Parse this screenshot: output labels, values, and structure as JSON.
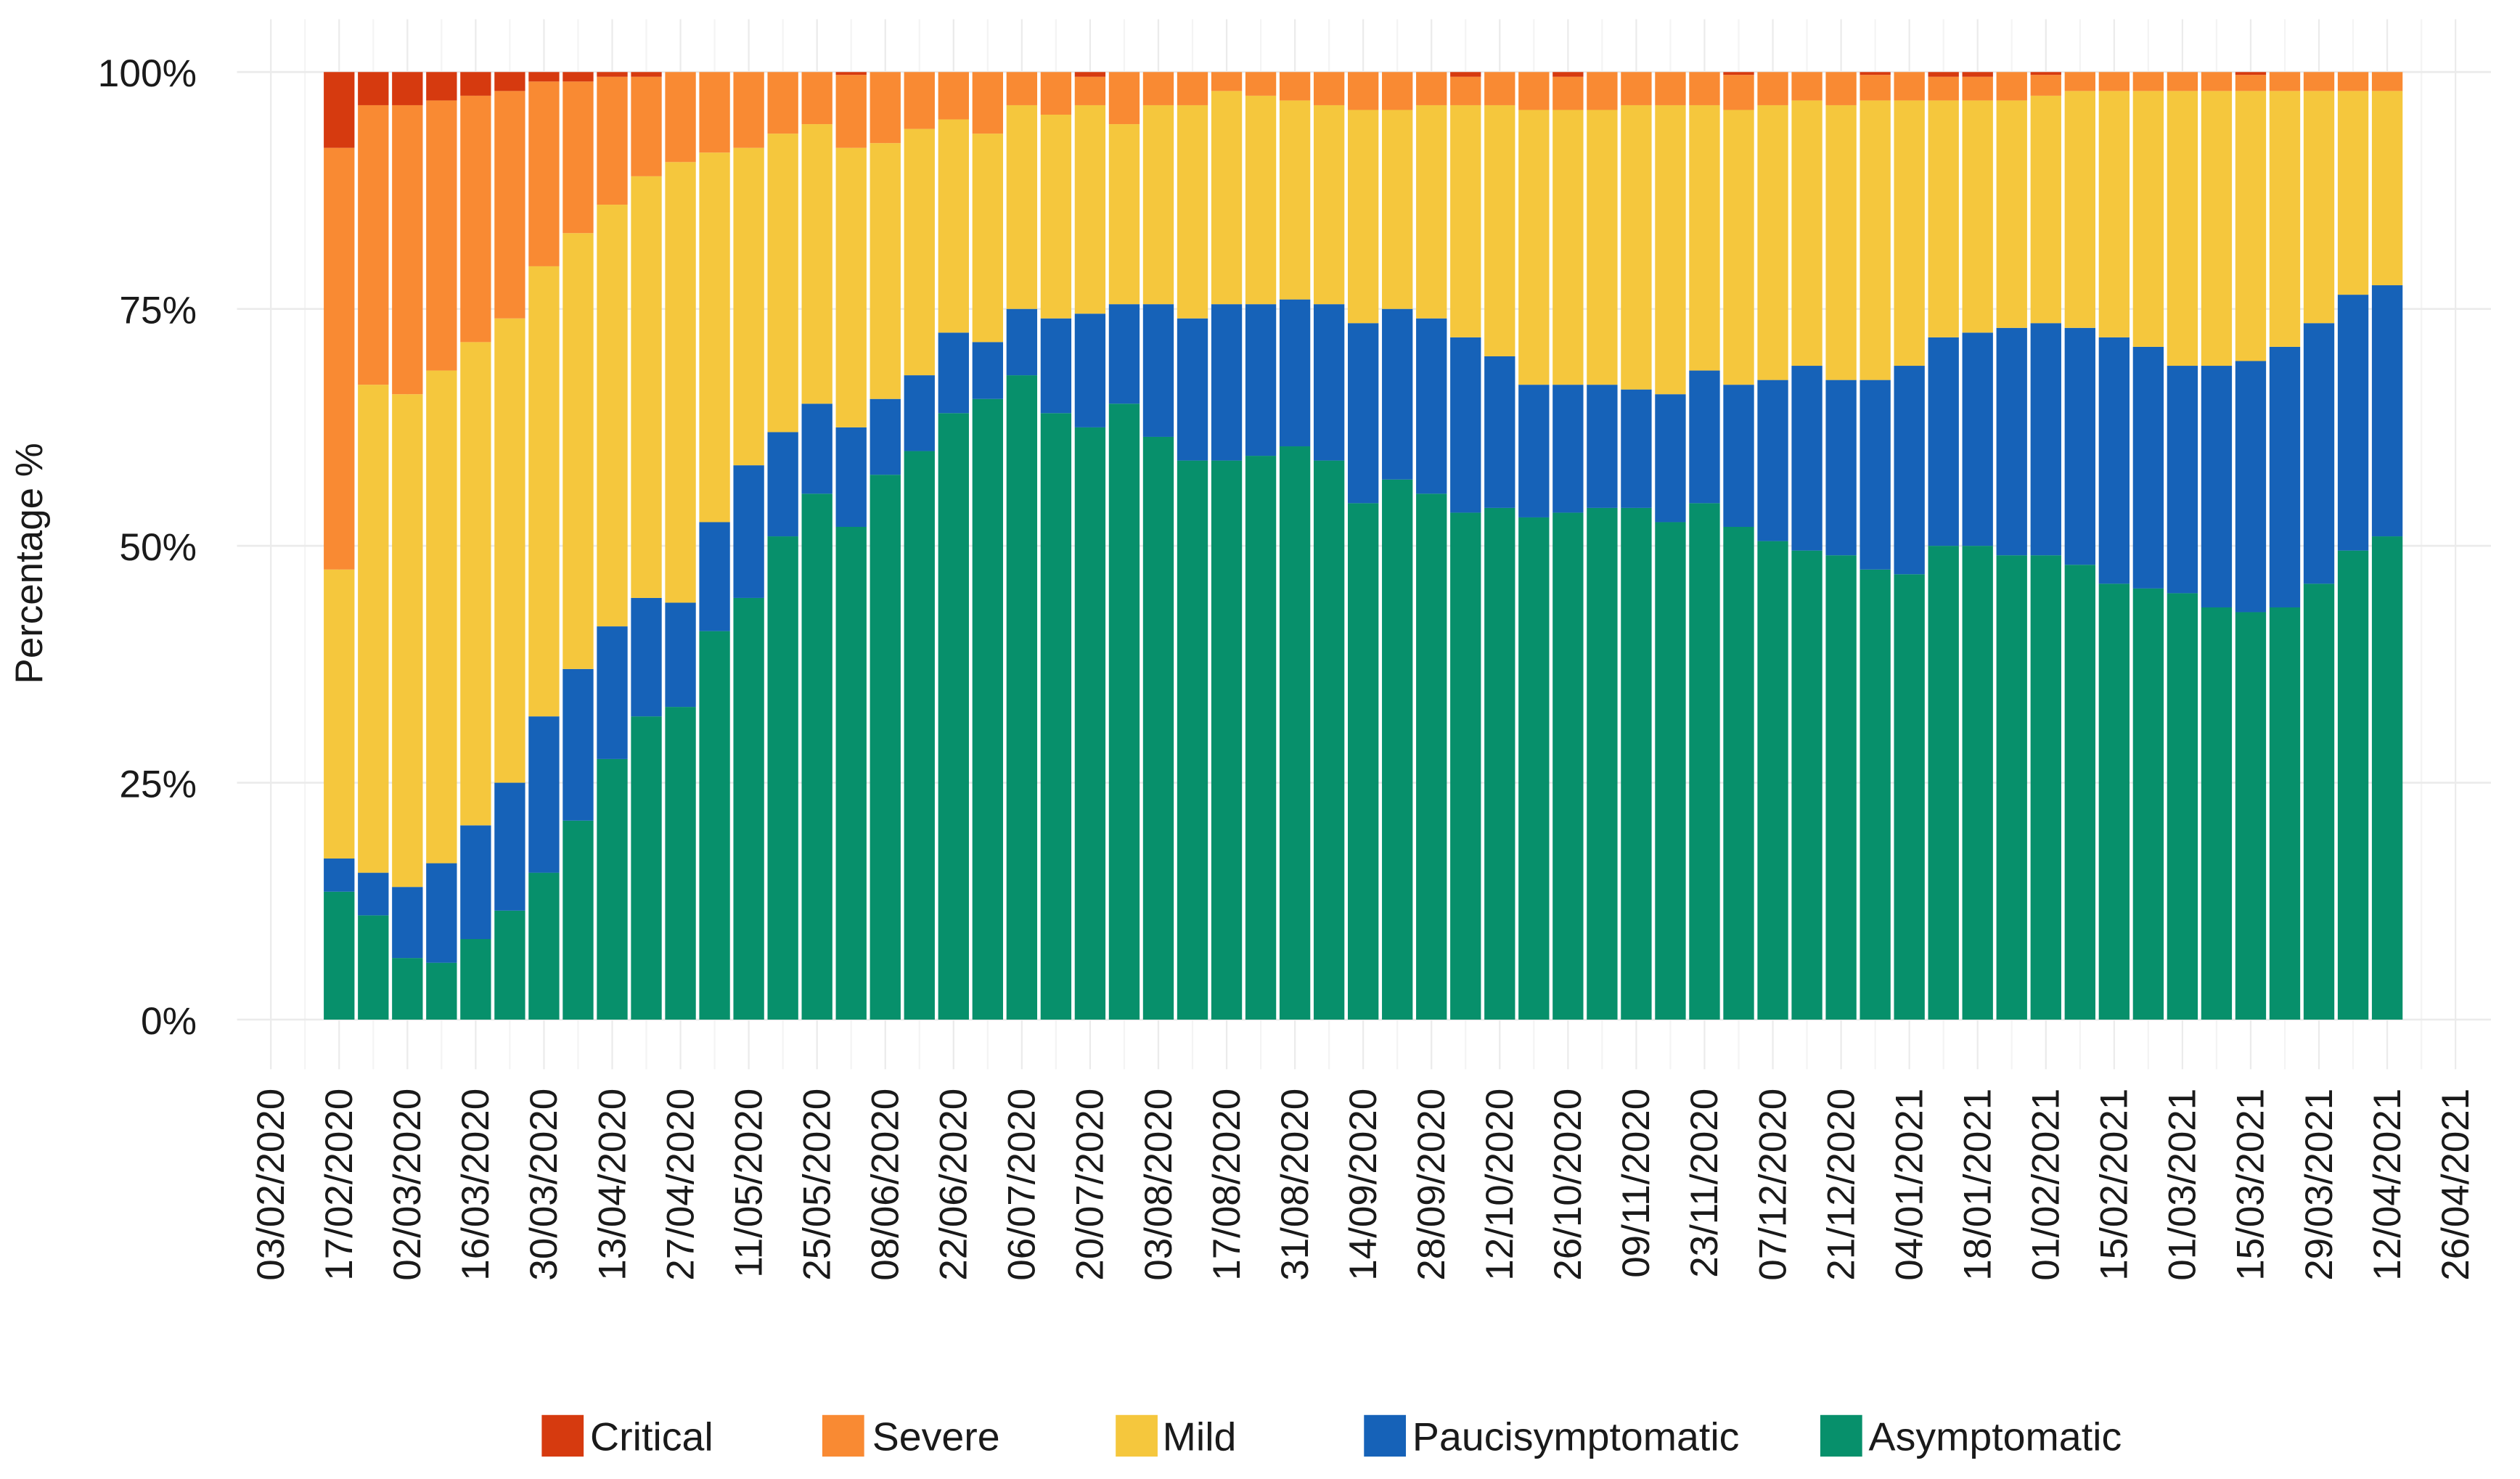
{
  "chart_data": {
    "type": "stacked_bar",
    "y_label": "Percentage %",
    "categories": [
      "03/02/2020",
      null,
      "17/02/2020",
      null,
      "02/03/2020",
      null,
      "16/03/2020",
      null,
      "30/03/2020",
      null,
      "13/04/2020",
      null,
      "27/04/2020",
      null,
      "11/05/2020",
      null,
      "25/05/2020",
      null,
      "08/06/2020",
      null,
      "22/06/2020",
      null,
      "06/07/2020",
      null,
      "20/07/2020",
      null,
      "03/08/2020",
      null,
      "17/08/2020",
      null,
      "31/08/2020",
      null,
      "14/09/2020",
      null,
      "28/09/2020",
      null,
      "12/10/2020",
      null,
      "26/10/2020",
      null,
      "09/11/2020",
      null,
      "23/11/2020",
      null,
      "07/12/2020",
      null,
      "21/12/2020",
      null,
      "04/01/2021",
      null,
      "18/01/2021",
      null,
      "01/02/2021",
      null,
      "15/02/2021",
      null,
      "01/03/2021",
      null,
      "15/03/2021",
      null,
      "29/03/2021",
      null,
      "12/04/2021",
      null,
      "26/04/2021"
    ],
    "series": [
      {
        "name": "Critical",
        "color": "#d63a0f",
        "values": [
          null,
          null,
          8,
          3.5,
          3.5,
          3,
          2.5,
          2,
          1,
          1,
          0.5,
          0.5,
          0,
          0,
          0,
          0,
          0,
          0.3,
          0,
          0,
          0,
          0,
          0,
          0,
          0.5,
          0,
          0,
          0,
          0,
          0,
          0,
          0,
          0,
          0,
          0,
          0.5,
          0,
          0,
          0.5,
          0,
          0,
          0,
          0,
          0.3,
          0,
          0,
          0,
          0.3,
          0,
          0.5,
          0.5,
          0,
          0.3,
          0,
          0,
          0,
          0,
          0,
          0.3,
          0,
          0,
          0,
          0,
          null,
          null
        ]
      },
      {
        "name": "Severe",
        "color": "#f98a33",
        "values": [
          null,
          null,
          44.5,
          29.5,
          30.5,
          28.5,
          26,
          24,
          19.5,
          16,
          13.5,
          10.5,
          9.5,
          8.5,
          8,
          6.5,
          5.5,
          7.7,
          7.5,
          6,
          5,
          6.5,
          3.5,
          4.5,
          3,
          5.5,
          3.5,
          3.5,
          2,
          2.5,
          3,
          3.5,
          4,
          4,
          3.5,
          3,
          3.5,
          4,
          3.5,
          4,
          3.5,
          3.5,
          3.5,
          3.7,
          3.5,
          3,
          3.5,
          2.7,
          3,
          2.5,
          2.5,
          3,
          2.2,
          2,
          2,
          2,
          2,
          2,
          1.7,
          2,
          2,
          2,
          2,
          null,
          null
        ]
      },
      {
        "name": "Mild",
        "color": "#f5c73d",
        "values": [
          null,
          null,
          30.5,
          51.5,
          52,
          52,
          51,
          49,
          47.5,
          46,
          44.5,
          44.5,
          46.5,
          39,
          33.5,
          31.5,
          29.5,
          29.5,
          27,
          26,
          22.5,
          22,
          21.5,
          21.5,
          22,
          19,
          21,
          22.5,
          22.5,
          22,
          21,
          21,
          22.5,
          21,
          22.5,
          24.5,
          26.5,
          29,
          29,
          29,
          30,
          30.5,
          28,
          29,
          29,
          28,
          29,
          29.5,
          28,
          25,
          24.5,
          24,
          24,
          25,
          26,
          27,
          29,
          29,
          28.5,
          27,
          24.5,
          21.5,
          20.5,
          null,
          null
        ]
      },
      {
        "name": "Paucisymptomatic",
        "color": "#1662b8",
        "values": [
          null,
          null,
          3.5,
          4.5,
          7.5,
          10.5,
          12,
          13.5,
          16.5,
          16,
          14,
          12.5,
          11,
          11.5,
          14,
          11,
          9.5,
          10.5,
          8,
          8,
          8.5,
          6,
          7,
          10,
          12,
          10.5,
          14,
          15,
          16.5,
          16,
          15.5,
          16.5,
          19,
          18,
          18.5,
          18.5,
          16,
          14,
          13.5,
          13,
          12.5,
          13.5,
          14,
          15,
          17,
          19.5,
          18.5,
          20,
          22,
          22,
          22.5,
          24,
          24.5,
          25,
          26,
          25.5,
          24,
          25.5,
          26.5,
          27.5,
          27.5,
          27,
          26.5,
          null,
          null
        ]
      },
      {
        "name": "Asymptomatic",
        "color": "#07906b",
        "values": [
          null,
          null,
          13.5,
          11,
          6.5,
          6,
          8.5,
          11.5,
          15.5,
          21,
          27.5,
          32,
          33,
          41,
          44.5,
          51,
          55.5,
          52,
          57.5,
          60,
          64,
          65.5,
          68,
          64,
          62.5,
          65,
          61.5,
          59,
          59,
          59.5,
          60.5,
          59,
          54.5,
          57,
          55.5,
          53.5,
          54,
          53,
          53.5,
          54,
          54,
          52.5,
          54.5,
          52,
          50.5,
          49.5,
          49,
          47.5,
          47,
          50,
          50,
          49,
          49,
          48,
          46,
          45.5,
          45,
          43.5,
          43,
          43.5,
          46,
          49.5,
          51,
          null,
          null
        ]
      }
    ],
    "ylim": [
      0,
      100
    ],
    "yticks": [
      {
        "value": 0,
        "label": "0%"
      },
      {
        "value": 25,
        "label": "25%"
      },
      {
        "value": 50,
        "label": "50%"
      },
      {
        "value": 75,
        "label": "75%"
      },
      {
        "value": 100,
        "label": "100%"
      }
    ],
    "grid": true
  }
}
